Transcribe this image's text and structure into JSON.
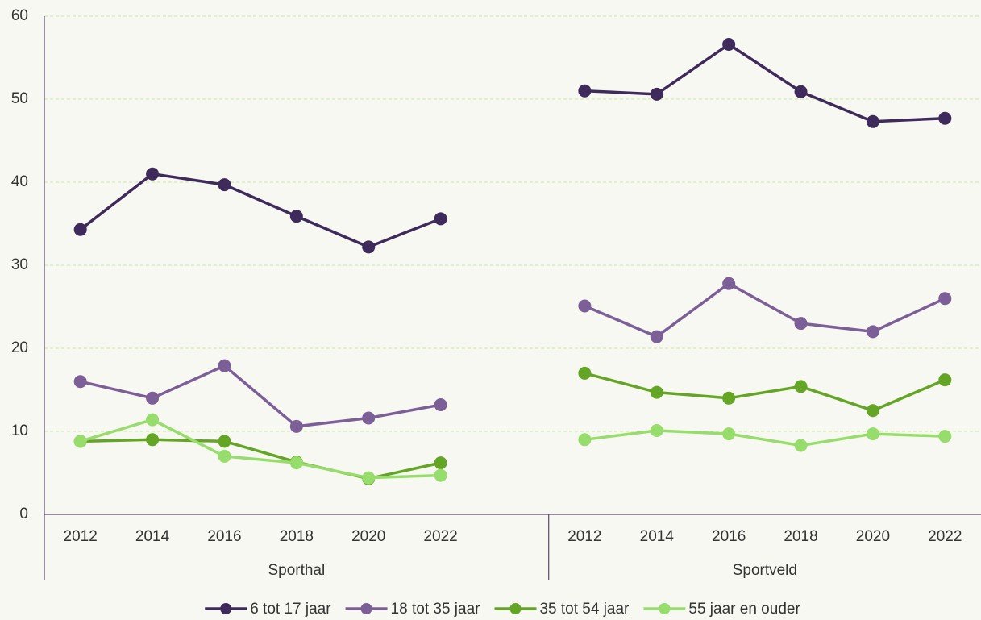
{
  "chart_data": {
    "type": "line",
    "ylim": [
      0,
      60
    ],
    "yticks": [
      0,
      10,
      20,
      30,
      40,
      50,
      60
    ],
    "grid": true,
    "legend": "bottom",
    "groups": [
      {
        "label": "Sporthal",
        "categories": [
          "2012",
          "2014",
          "2016",
          "2018",
          "2020",
          "2022",
          null
        ]
      },
      {
        "label": "Sportveld",
        "categories": [
          "2012",
          "2014",
          "2016",
          "2018",
          "2020",
          "2022"
        ]
      }
    ],
    "series": [
      {
        "name": "6 tot 17 jaar",
        "color": "#3f2a5c",
        "values": [
          [
            34.3,
            41.0,
            39.7,
            35.9,
            32.2,
            35.6,
            null
          ],
          [
            51.0,
            50.6,
            56.6,
            50.9,
            47.3,
            47.7
          ]
        ]
      },
      {
        "name": "18 tot 35 jaar",
        "color": "#7d5f98",
        "values": [
          [
            16.0,
            14.0,
            17.9,
            10.6,
            11.6,
            13.2,
            null
          ],
          [
            25.1,
            21.4,
            27.8,
            23.0,
            22.0,
            26.0
          ]
        ]
      },
      {
        "name": "35 tot 54 jaar",
        "color": "#64a526",
        "values": [
          [
            8.8,
            9.0,
            8.8,
            6.3,
            4.3,
            6.2,
            null
          ],
          [
            17.0,
            14.7,
            14.0,
            15.4,
            12.5,
            16.2
          ]
        ]
      },
      {
        "name": "55 jaar en ouder",
        "color": "#97dd6c",
        "values": [
          [
            8.8,
            11.4,
            7.0,
            6.2,
            4.4,
            4.7,
            null
          ],
          [
            9.0,
            10.1,
            9.7,
            8.3,
            9.7,
            9.4
          ]
        ]
      }
    ]
  }
}
